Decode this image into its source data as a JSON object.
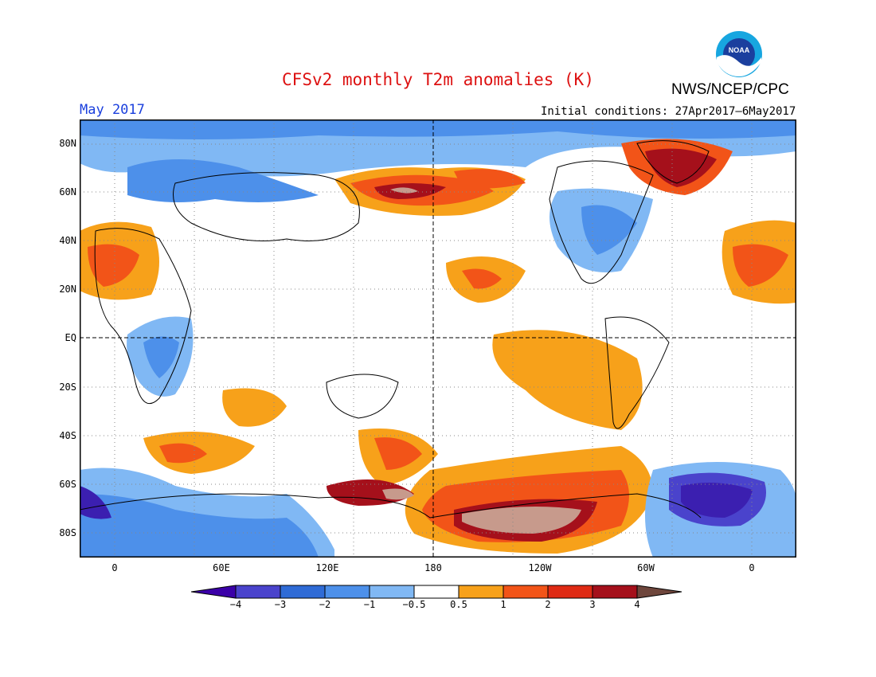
{
  "title": "CFSv2 monthly T2m anomalies (K)",
  "agency": "NWS/NCEP/CPC",
  "logo_text": "NOAA",
  "month": "May 2017",
  "initial_conditions": "Initial conditions: 27Apr2017–6May2017",
  "colors": {
    "title": "#dd1111",
    "month": "#1a3fdd",
    "border": "#000000",
    "dashed_lines": "#000000"
  },
  "lat_labels": [
    "80N",
    "60N",
    "40N",
    "20N",
    "EQ",
    "20S",
    "40S",
    "60S",
    "80S"
  ],
  "lon_labels": [
    "0",
    "60E",
    "120E",
    "180",
    "120W",
    "60W",
    "0"
  ],
  "colorbar": {
    "labels": [
      "−4",
      "−3",
      "−2",
      "−1",
      "−0.5",
      "0.5",
      "1",
      "2",
      "3",
      "4"
    ],
    "colors": [
      "#3b1fb0",
      "#4a43cc",
      "#2f6bd6",
      "#4d90ea",
      "#80b8f4",
      "#ffffff",
      "#f7a11a",
      "#f25418",
      "#df2a14",
      "#a5101b",
      "#c79a8c"
    ],
    "low_arrow_color": "#3b00a8",
    "high_arrow_color": "#6e463c"
  }
}
